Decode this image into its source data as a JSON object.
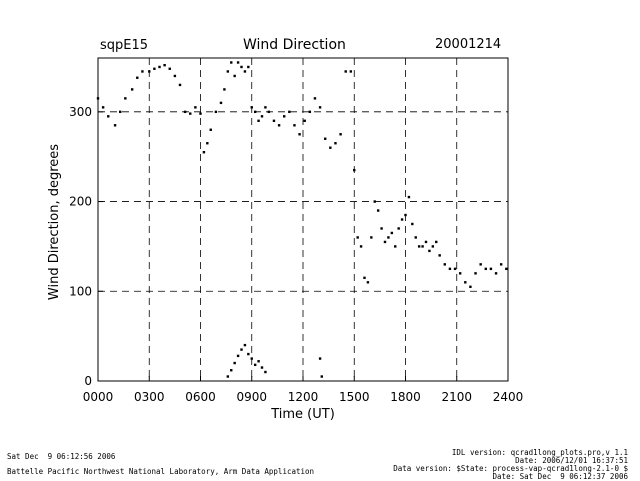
{
  "header": {
    "site": "sqpE15",
    "title": "Wind Direction",
    "date": "20001214"
  },
  "footer": {
    "left_line1": "Sat Dec  9 06:12:56 2006",
    "left_line2": "Battelle Pacific Northwest National Laboratory, Arm Data Application",
    "right_line1": "IDL version: qcrad1long_plots.pro,v 1.1",
    "right_line2": "Date: 2006/12/01 16:37:51",
    "right_line3": "Data version: $State: process-vap-qcrad1long-2.1-0 $",
    "right_line4": "Date: Sat Dec  9 06:12:37 2006"
  },
  "chart_data": {
    "type": "scatter",
    "title": "Wind Direction",
    "xlabel": "Time (UT)",
    "ylabel": "Wind Direction, degrees",
    "xlim": [
      0,
      2400
    ],
    "ylim": [
      0,
      360
    ],
    "x_ticks": [
      "0000",
      "0300",
      "0600",
      "0900",
      "1200",
      "1500",
      "1800",
      "2100",
      "2400"
    ],
    "y_ticks": [
      0,
      100,
      200,
      300
    ],
    "grid": "dashed vertical every 300 UT, dashed horizontal at 100/200/300",
    "series": [
      {
        "marker": "small black dots",
        "x": [
          0,
          30,
          60,
          100,
          130,
          160,
          200,
          230,
          260,
          300,
          330,
          360,
          390,
          420,
          450,
          480,
          510,
          540,
          570,
          600,
          620,
          640,
          660,
          690,
          720,
          740,
          760,
          780,
          800,
          820,
          840,
          860,
          880,
          900,
          920,
          940,
          960,
          980,
          1000,
          1030,
          1060,
          1090,
          1120,
          1150,
          1180,
          1210,
          1240,
          1270,
          1300,
          1330,
          1360,
          1390,
          1420,
          1450,
          1480,
          1500,
          1520,
          1540,
          1560,
          1580,
          1600,
          1620,
          1640,
          1660,
          1680,
          1700,
          1720,
          1740,
          1760,
          1780,
          1800,
          1820,
          1840,
          1860,
          1880,
          1900,
          1920,
          1940,
          1960,
          1980,
          2000,
          2030,
          2060,
          2090,
          2120,
          2150,
          2180,
          2210,
          2240,
          2270,
          2300,
          2330,
          2360,
          2390
        ],
        "y": [
          315,
          305,
          295,
          285,
          300,
          315,
          325,
          338,
          345,
          345,
          348,
          350,
          352,
          348,
          340,
          330,
          300,
          298,
          305,
          298,
          255,
          265,
          280,
          300,
          310,
          325,
          345,
          355,
          340,
          355,
          350,
          345,
          350,
          305,
          300,
          290,
          295,
          305,
          300,
          290,
          285,
          295,
          300,
          285,
          275,
          290,
          300,
          315,
          305,
          270,
          260,
          265,
          275,
          345,
          345,
          235,
          160,
          150,
          115,
          110,
          160,
          200,
          190,
          170,
          155,
          160,
          165,
          150,
          170,
          180,
          185,
          205,
          175,
          160,
          150,
          150,
          155,
          145,
          150,
          155,
          140,
          130,
          125,
          125,
          120,
          110,
          105,
          120,
          130,
          125,
          125,
          120,
          130,
          125
        ]
      },
      {
        "marker": "small black dots",
        "x": [
          760,
          780,
          800,
          820,
          840,
          860,
          880,
          900,
          920,
          940,
          960,
          980,
          1300,
          1310
        ],
        "y": [
          5,
          12,
          20,
          28,
          35,
          40,
          30,
          25,
          18,
          22,
          15,
          10,
          25,
          5
        ]
      }
    ]
  }
}
